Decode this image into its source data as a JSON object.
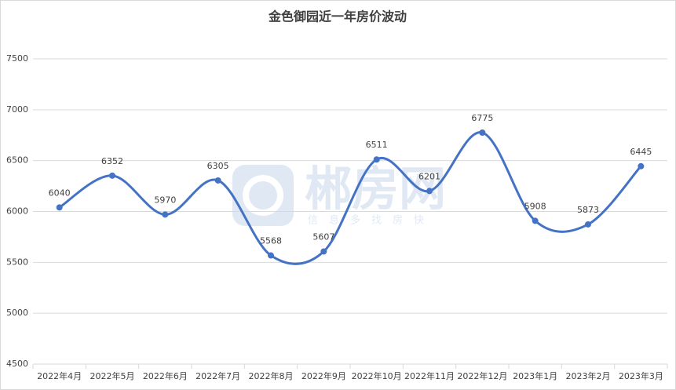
{
  "chart_data": {
    "type": "line",
    "title": "金色御园近一年房价波动",
    "watermark": "郴房网",
    "watermark_subtitle": "信息多找房快",
    "categories": [
      "2022年4月",
      "2022年5月",
      "2022年6月",
      "2022年7月",
      "2022年8月",
      "2022年9月",
      "2022年10月",
      "2022年11月",
      "2022年12月",
      "2023年1月",
      "2023年2月",
      "2023年3月"
    ],
    "values": [
      6040,
      6352,
      5970,
      6305,
      5568,
      5607,
      6511,
      6201,
      6775,
      5908,
      5873,
      6445
    ],
    "color": "#4472c4",
    "smooth": true,
    "data_labels": true,
    "ylim": [
      4500,
      7500
    ],
    "yticks": [
      4500,
      5000,
      5500,
      6000,
      6500,
      7000,
      7500
    ],
    "grid": true
  }
}
